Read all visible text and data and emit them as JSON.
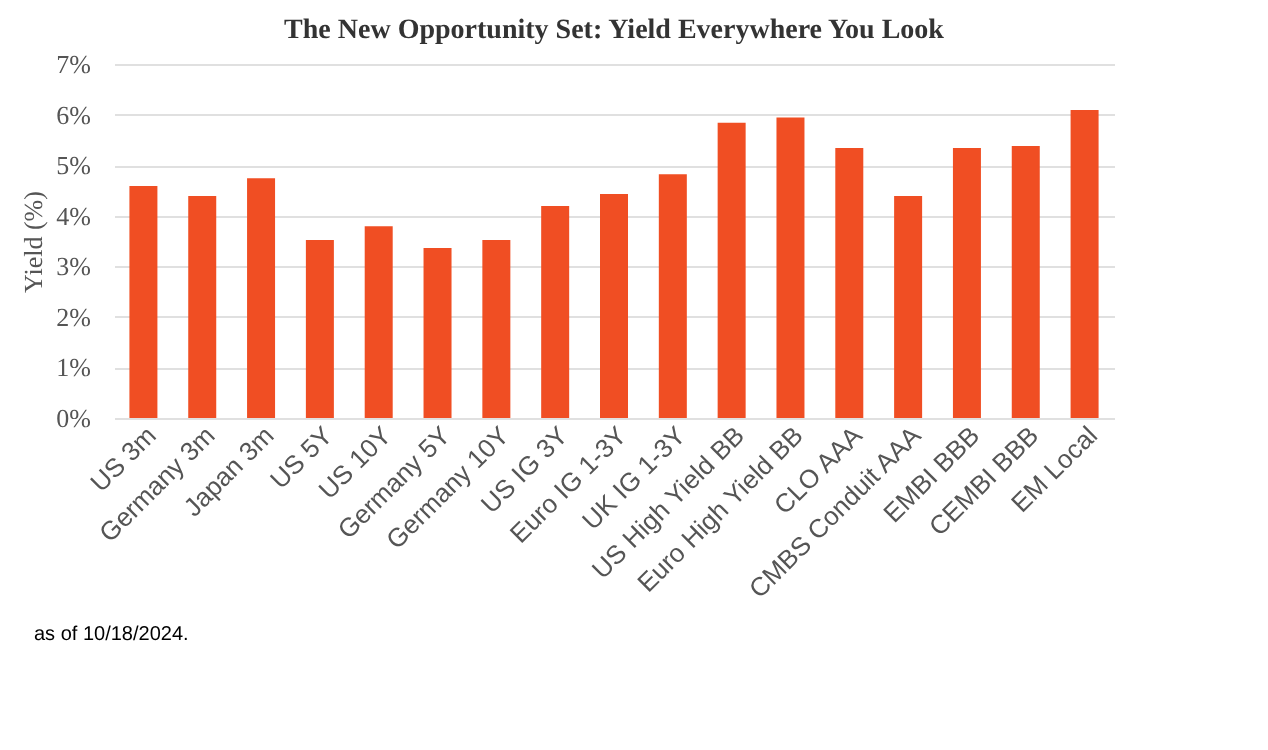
{
  "chart_data": {
    "type": "bar",
    "title": "The New Opportunity Set: Yield Everywhere You Look",
    "ylabel": "Yield (%)",
    "categories": [
      "US 3m",
      "Germany 3m",
      "Japan 3m",
      "US 5Y",
      "US 10Y",
      "Germany 5Y",
      "Germany 10Y",
      "US IG 3Y",
      "Euro IG 1-3Y",
      "UK IG 1-3Y",
      "US High Yield BB",
      "Euro High Yield BB",
      "CLO AAA",
      "CMBS Conduit AAA",
      "EMBI BBB",
      "CEMBI BBB",
      "EM Local"
    ],
    "values": [
      4.59,
      4.39,
      4.74,
      3.52,
      3.79,
      3.36,
      3.52,
      4.19,
      4.43,
      4.82,
      5.84,
      5.94,
      5.34,
      4.39,
      5.34,
      5.38,
      6.09
    ],
    "color": "#f04e23",
    "ylim": [
      0,
      7
    ],
    "yticks": [
      {
        "value": 0,
        "label": "0%"
      },
      {
        "value": 1,
        "label": "1%"
      },
      {
        "value": 2,
        "label": "2%"
      },
      {
        "value": 3,
        "label": "3%"
      },
      {
        "value": 4,
        "label": "4%"
      },
      {
        "value": 5,
        "label": "5%"
      },
      {
        "value": 6,
        "label": "6%"
      },
      {
        "value": 7,
        "label": "7%"
      }
    ],
    "grid": "y",
    "annotations": [
      "as of 10/18/2024."
    ]
  }
}
